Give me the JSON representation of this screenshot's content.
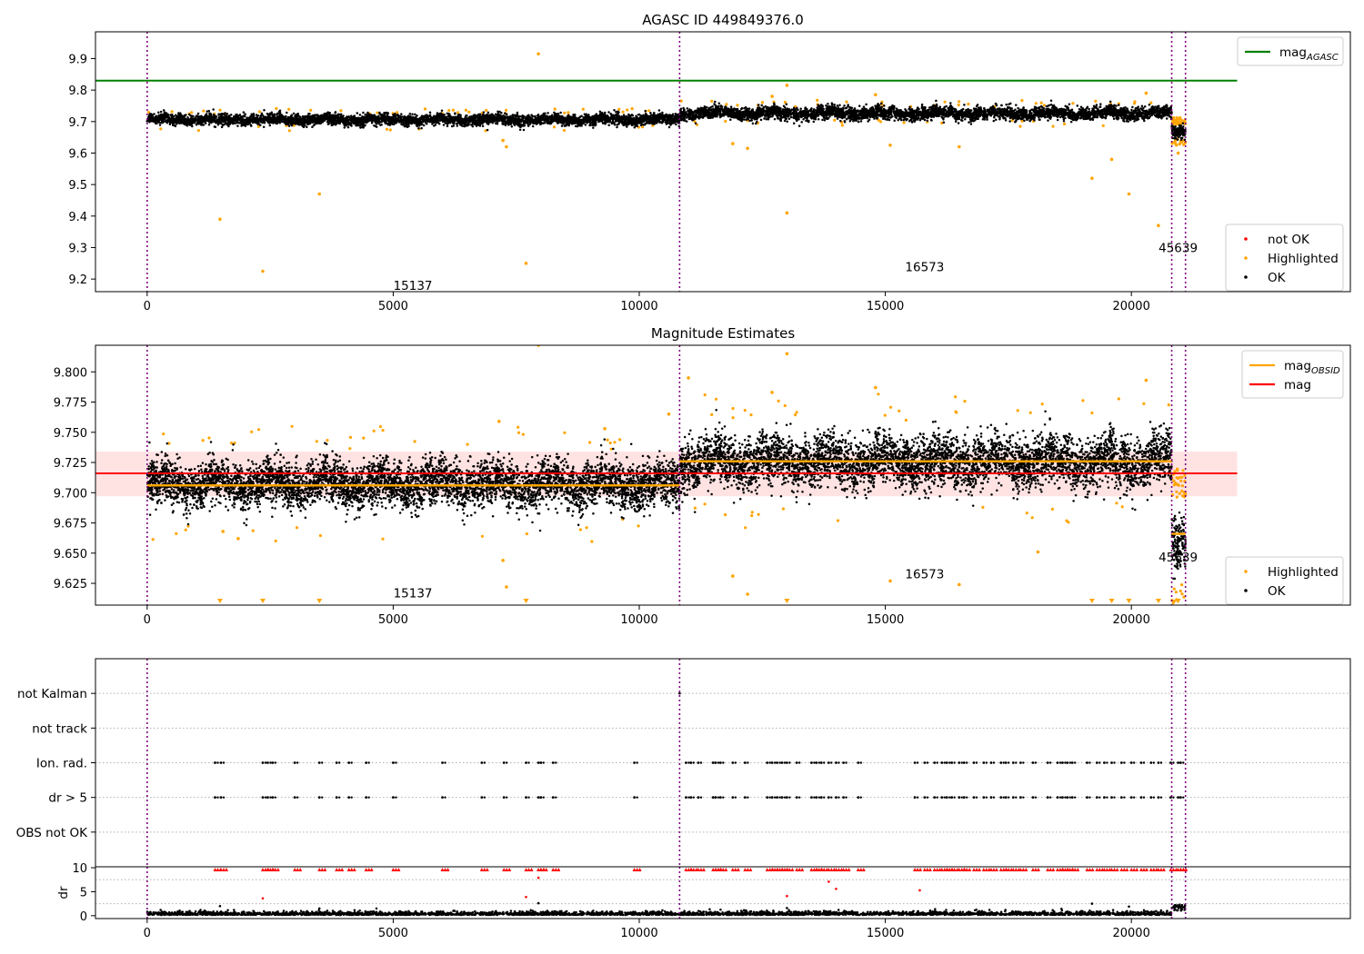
{
  "colors": {
    "ok": "#000000",
    "highlighted": "#ffa500",
    "not_ok": "#ff0000",
    "agasc_line": "#008000",
    "mag_line": "#ff0000",
    "mag_band": "#ffc0c0",
    "obsid_line": "#ffa500",
    "obsid_boundary": "#800080",
    "grid": "#b0b0b0"
  },
  "chart_data": [
    {
      "type": "scatter",
      "title": "AGASC ID 449849376.0",
      "xlim": [
        -1050,
        24450
      ],
      "ylim": [
        9.16,
        9.985
      ],
      "x_ticks": [
        0,
        5000,
        10000,
        15000,
        20000
      ],
      "y_ticks": [
        9.2,
        9.3,
        9.4,
        9.5,
        9.6,
        9.7,
        9.8,
        9.9
      ],
      "obsid_boundaries": [
        0,
        10820,
        20820,
        21100
      ],
      "obsid_labels": [
        {
          "text": "15137",
          "x": 5400,
          "y": 9.18
        },
        {
          "text": "16573",
          "x": 15800,
          "y": 9.24
        },
        {
          "text": "45639",
          "x": 20950,
          "y": 9.3
        }
      ],
      "horizontal_lines": [
        {
          "series": "mag_AGASC",
          "y": 9.83,
          "x_range": [
            -1050,
            22150
          ]
        }
      ],
      "segments": [
        {
          "x_range": [
            0,
            10820
          ],
          "mean": 9.706,
          "spread": 0.011
        },
        {
          "x_range": [
            10820,
            20820
          ],
          "mean": 9.726,
          "spread": 0.013
        },
        {
          "x_range": [
            20820,
            21100
          ],
          "mean": 9.668,
          "spread": 0.014
        }
      ],
      "highlighted_points": [
        {
          "x": 1480,
          "y": 9.39
        },
        {
          "x": 2350,
          "y": 9.225
        },
        {
          "x": 3500,
          "y": 9.47
        },
        {
          "x": 7700,
          "y": 9.25
        },
        {
          "x": 7950,
          "y": 9.915
        },
        {
          "x": 7230,
          "y": 9.64
        },
        {
          "x": 7300,
          "y": 9.62
        },
        {
          "x": 11900,
          "y": 9.63
        },
        {
          "x": 12200,
          "y": 9.615
        },
        {
          "x": 13000,
          "y": 9.41
        },
        {
          "x": 13000,
          "y": 9.815
        },
        {
          "x": 12700,
          "y": 9.78
        },
        {
          "x": 15100,
          "y": 9.625
        },
        {
          "x": 16500,
          "y": 9.62
        },
        {
          "x": 19200,
          "y": 9.52
        },
        {
          "x": 19600,
          "y": 9.58
        },
        {
          "x": 19950,
          "y": 9.47
        },
        {
          "x": 20550,
          "y": 9.37
        },
        {
          "x": 20950,
          "y": 9.6
        },
        {
          "x": 14800,
          "y": 9.785
        },
        {
          "x": 20300,
          "y": 9.79
        }
      ],
      "legends": [
        {
          "position": "upper-right",
          "entries": [
            {
              "label": "mag",
              "sub": "AGASC",
              "marker": "line",
              "color": "#008000"
            }
          ]
        },
        {
          "position": "lower-right",
          "entries": [
            {
              "label": "not OK",
              "marker": "dot",
              "color": "#ff0000"
            },
            {
              "label": "Highlighted",
              "marker": "dot",
              "color": "#ffa500"
            },
            {
              "label": "OK",
              "marker": "dot",
              "color": "#000000"
            }
          ]
        }
      ]
    },
    {
      "type": "scatter",
      "title": "Magnitude Estimates",
      "xlim": [
        -1050,
        24450
      ],
      "ylim": [
        9.607,
        9.822
      ],
      "x_ticks": [
        0,
        5000,
        10000,
        15000,
        20000
      ],
      "y_ticks": [
        9.625,
        9.65,
        9.675,
        9.7,
        9.725,
        9.75,
        9.775,
        9.8
      ],
      "y_tick_labels": [
        "9.625",
        "9.650",
        "9.675",
        "9.700",
        "9.725",
        "9.750",
        "9.775",
        "9.800"
      ],
      "obsid_boundaries": [
        0,
        10820,
        20820,
        21100
      ],
      "obsid_labels": [
        {
          "text": "15137",
          "x": 5400,
          "y": 9.617
        },
        {
          "text": "16573",
          "x": 15800,
          "y": 9.633
        },
        {
          "text": "45639",
          "x": 20950,
          "y": 9.647
        }
      ],
      "mag": {
        "value": 9.716,
        "band": [
          9.697,
          9.734
        ],
        "x_range": [
          -1050,
          22150
        ]
      },
      "mag_obsid": [
        {
          "x_range": [
            0,
            10820
          ],
          "y": 9.706
        },
        {
          "x_range": [
            10820,
            20820
          ],
          "y": 9.726
        },
        {
          "x_range": [
            20820,
            21100
          ],
          "y": 9.666
        }
      ],
      "segments": [
        {
          "x_range": [
            0,
            10820
          ],
          "mean": 9.707,
          "spread": 0.012
        },
        {
          "x_range": [
            10820,
            20820
          ],
          "mean": 9.726,
          "spread": 0.014
        },
        {
          "x_range": [
            20820,
            21100
          ],
          "mean": 9.66,
          "spread": 0.015
        }
      ],
      "highlighted_points": [
        {
          "x": 1540,
          "y": 9.668
        },
        {
          "x": 1850,
          "y": 9.662
        },
        {
          "x": 7230,
          "y": 9.644
        },
        {
          "x": 7300,
          "y": 9.622
        },
        {
          "x": 7950,
          "y": 9.822
        },
        {
          "x": 11900,
          "y": 9.631
        },
        {
          "x": 12200,
          "y": 9.616
        },
        {
          "x": 13000,
          "y": 9.815
        },
        {
          "x": 12700,
          "y": 9.783
        },
        {
          "x": 14800,
          "y": 9.787
        },
        {
          "x": 15100,
          "y": 9.627
        },
        {
          "x": 16500,
          "y": 9.624
        },
        {
          "x": 18100,
          "y": 9.651
        },
        {
          "x": 20300,
          "y": 9.793
        },
        {
          "x": 11000,
          "y": 9.795
        },
        {
          "x": 7150,
          "y": 9.759
        },
        {
          "x": 9300,
          "y": 9.753
        },
        {
          "x": 10600,
          "y": 9.765
        }
      ],
      "clipped_markers_x": [
        1480,
        2350,
        3500,
        7700,
        13000,
        19200,
        19600,
        19950,
        20550,
        20950
      ],
      "legends": [
        {
          "position": "upper-right",
          "entries": [
            {
              "label": "mag",
              "sub": "OBSID",
              "marker": "line",
              "color": "#ffa500"
            },
            {
              "label": "mag",
              "marker": "line",
              "color": "#ff0000"
            }
          ]
        },
        {
          "position": "lower-right",
          "entries": [
            {
              "label": "Highlighted",
              "marker": "dot",
              "color": "#ffa500"
            },
            {
              "label": "OK",
              "marker": "dot",
              "color": "#000000"
            }
          ]
        }
      ]
    },
    {
      "type": "scatter",
      "xlim": [
        -1050,
        24450
      ],
      "categories": [
        "OBS not OK",
        "dr > 5",
        "Ion. rad.",
        "not track",
        "not Kalman"
      ],
      "flag_times": [
        1380,
        1500,
        2350,
        2450,
        2550,
        3000,
        3500,
        3850,
        4100,
        4450,
        5000,
        6000,
        6800,
        7250,
        7700,
        7950,
        8000,
        8250,
        9900,
        10950,
        11050,
        11200,
        11500,
        11550,
        11650,
        11900,
        12150,
        12600,
        12700,
        12800,
        12900,
        13000,
        13200,
        13500,
        13600,
        13700,
        13850,
        14000,
        14150,
        14450,
        15600,
        15800,
        16000,
        16150,
        16250,
        16350,
        16500,
        16600,
        16800,
        17000,
        17150,
        17350,
        17450,
        17600,
        17750,
        18000,
        18300,
        18500,
        18600,
        18700,
        18800,
        19100,
        19300,
        19450,
        19600,
        19800,
        20000,
        20200,
        20400,
        20550,
        20800,
        20950,
        21000
      ],
      "not_kalman_times": [
        10820
      ],
      "obsid_boundaries": [
        0,
        10820,
        20820,
        21100
      ]
    },
    {
      "type": "scatter",
      "ylabel": "dr",
      "xlim": [
        -1050,
        24450
      ],
      "ylim": [
        -0.6,
        10.2
      ],
      "x_ticks": [
        0,
        5000,
        10000,
        15000,
        20000
      ],
      "y_ticks": [
        0,
        5,
        10
      ],
      "clip_level": 10,
      "clipped_times": [
        1380,
        1500,
        2350,
        2450,
        2550,
        3000,
        3500,
        3850,
        4100,
        4450,
        5000,
        6000,
        6800,
        7250,
        7700,
        7950,
        8000,
        8250,
        9900,
        10950,
        11050,
        11200,
        11500,
        11550,
        11650,
        11900,
        12150,
        12600,
        12700,
        12800,
        12900,
        13000,
        13200,
        13500,
        13600,
        13700,
        13850,
        14000,
        14150,
        14450,
        15600,
        15800,
        16000,
        16150,
        16250,
        16350,
        16500,
        16600,
        16800,
        17000,
        17150,
        17350,
        17450,
        17600,
        17750,
        18000,
        18300,
        18500,
        18600,
        18700,
        18800,
        19100,
        19300,
        19450,
        19600,
        19800,
        20000,
        20200,
        20400,
        20550,
        20800,
        20950,
        21000
      ],
      "red_points": [
        {
          "x": 2350,
          "y": 3.6
        },
        {
          "x": 7700,
          "y": 3.9
        },
        {
          "x": 7950,
          "y": 7.9
        },
        {
          "x": 13000,
          "y": 4.1
        },
        {
          "x": 13850,
          "y": 7.1
        },
        {
          "x": 14000,
          "y": 5.6
        },
        {
          "x": 15700,
          "y": 5.3
        }
      ],
      "black_points": [
        {
          "x": 1480,
          "y": 2.0
        },
        {
          "x": 3500,
          "y": 1.5
        },
        {
          "x": 7950,
          "y": 2.6
        },
        {
          "x": 13000,
          "y": 1.6
        },
        {
          "x": 19200,
          "y": 2.5
        },
        {
          "x": 19950,
          "y": 1.9
        }
      ],
      "obsid_boundaries": [
        0,
        10820,
        20820,
        21100
      ]
    }
  ]
}
